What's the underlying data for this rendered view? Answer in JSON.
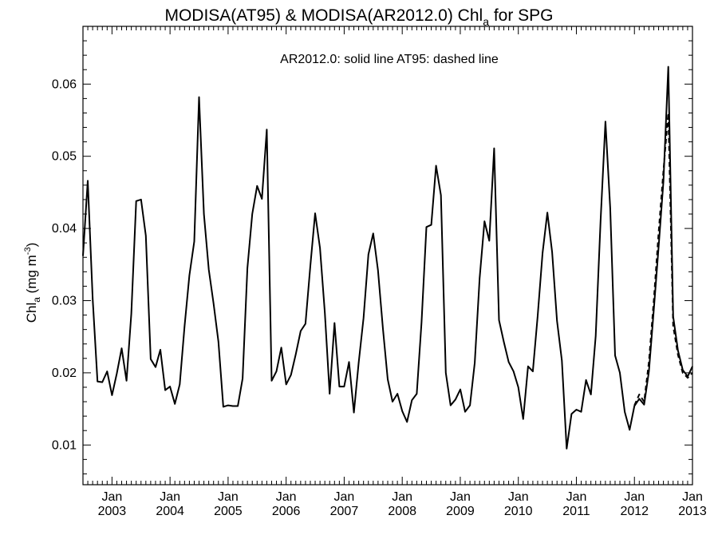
{
  "chart_data": {
    "type": "line",
    "title_main": "MODISA(AT95) & MODISA(AR2012.0)  Chl",
    "title_sub": "a",
    "title_end": " for SPG",
    "ylabel_main": "Chl",
    "ylabel_sub": "a",
    "ylabel_units": " (mg m",
    "ylabel_exp": "-3",
    "ylabel_close": ")",
    "annotation": "AR2012.0: solid line   AT95: dashed line",
    "xlim": [
      2002.5,
      2013.0
    ],
    "ylim": [
      0.0045,
      0.068
    ],
    "yticks": [
      0.01,
      0.02,
      0.03,
      0.04,
      0.05,
      0.06
    ],
    "ytick_labels": [
      "0.01",
      "0.02",
      "0.03",
      "0.04",
      "0.05",
      "0.06"
    ],
    "xticks": [
      2003,
      2004,
      2005,
      2006,
      2007,
      2008,
      2009,
      2010,
      2011,
      2012,
      2013
    ],
    "xtick_month_label": "Jan",
    "xtick_year_labels": [
      "2003",
      "2004",
      "2005",
      "2006",
      "2007",
      "2008",
      "2009",
      "2010",
      "2011",
      "2012",
      "2013"
    ],
    "series": [
      {
        "style": "solid",
        "x": [
          2002.5,
          2002.583,
          2002.667,
          2002.75,
          2002.833,
          2002.917,
          2003.0,
          2003.083,
          2003.167,
          2003.25,
          2003.333,
          2003.417,
          2003.5,
          2003.583,
          2003.667,
          2003.75,
          2003.833,
          2003.917,
          2004.0,
          2004.083,
          2004.167,
          2004.25,
          2004.333,
          2004.417,
          2004.5,
          2004.583,
          2004.667,
          2004.75,
          2004.833,
          2004.917,
          2005.0,
          2005.083,
          2005.167,
          2005.25,
          2005.333,
          2005.417,
          2005.5,
          2005.583,
          2005.667,
          2005.75,
          2005.833,
          2005.917,
          2006.0,
          2006.083,
          2006.167,
          2006.25,
          2006.333,
          2006.417,
          2006.5,
          2006.583,
          2006.667,
          2006.75,
          2006.833,
          2006.917,
          2007.0,
          2007.083,
          2007.167,
          2007.25,
          2007.333,
          2007.417,
          2007.5,
          2007.583,
          2007.667,
          2007.75,
          2007.833,
          2007.917,
          2008.0,
          2008.083,
          2008.167,
          2008.25,
          2008.333,
          2008.417,
          2008.5,
          2008.583,
          2008.667,
          2008.75,
          2008.833,
          2008.917,
          2009.0,
          2009.083,
          2009.167,
          2009.25,
          2009.333,
          2009.417,
          2009.5,
          2009.583,
          2009.667,
          2009.75,
          2009.833,
          2009.917,
          2010.0,
          2010.083,
          2010.167,
          2010.25,
          2010.333,
          2010.417,
          2010.5,
          2010.583,
          2010.667,
          2010.75,
          2010.833,
          2010.917,
          2011.0,
          2011.083,
          2011.167,
          2011.25,
          2011.333,
          2011.417,
          2011.5,
          2011.583,
          2011.667,
          2011.75,
          2011.833,
          2011.917,
          2012.0,
          2012.083,
          2012.167,
          2012.25,
          2012.333,
          2012.417,
          2012.5,
          2012.583,
          2012.667,
          2012.75,
          2012.833,
          2012.917,
          2013.0
        ],
        "y": [
          0.0362,
          0.0466,
          0.0302,
          0.0188,
          0.0187,
          0.0202,
          0.0169,
          0.0199,
          0.0234,
          0.0189,
          0.0282,
          0.0438,
          0.044,
          0.039,
          0.0219,
          0.0208,
          0.0232,
          0.0176,
          0.0181,
          0.0157,
          0.0184,
          0.0264,
          0.0335,
          0.0382,
          0.0582,
          0.042,
          0.0343,
          0.0296,
          0.0243,
          0.0153,
          0.0155,
          0.0154,
          0.0154,
          0.0192,
          0.0345,
          0.042,
          0.0459,
          0.0441,
          0.0537,
          0.0189,
          0.0202,
          0.0235,
          0.0184,
          0.0197,
          0.0226,
          0.0258,
          0.0268,
          0.0348,
          0.0421,
          0.0373,
          0.0283,
          0.0171,
          0.0269,
          0.0181,
          0.0181,
          0.0215,
          0.0145,
          0.0214,
          0.0276,
          0.0364,
          0.0393,
          0.0342,
          0.0261,
          0.0191,
          0.016,
          0.0171,
          0.0147,
          0.0132,
          0.0162,
          0.0171,
          0.027,
          0.0402,
          0.0405,
          0.0487,
          0.0446,
          0.02,
          0.0155,
          0.0163,
          0.0177,
          0.0146,
          0.0155,
          0.0214,
          0.0331,
          0.041,
          0.0383,
          0.0511,
          0.0273,
          0.0243,
          0.0215,
          0.0202,
          0.018,
          0.0136,
          0.0209,
          0.0202,
          0.0278,
          0.0366,
          0.0422,
          0.0367,
          0.0272,
          0.0217,
          0.0095,
          0.0143,
          0.0149,
          0.0146,
          0.019,
          0.017,
          0.0251,
          0.041,
          0.0548,
          0.0428,
          0.0224,
          0.02,
          0.0146,
          0.0121,
          0.0154,
          0.0164,
          0.0156,
          0.0202,
          0.0287,
          0.0375,
          0.0465,
          0.0624,
          0.0278,
          0.0231,
          0.0204,
          0.0195,
          0.0209
        ]
      },
      {
        "style": "dashed",
        "x": [
          2012.0,
          2012.083,
          2012.167,
          2012.25,
          2012.333,
          2012.417,
          2012.5,
          2012.583,
          2012.667,
          2012.75,
          2012.833,
          2012.917,
          2013.0
        ],
        "y": [
          0.0155,
          0.017,
          0.016,
          0.0215,
          0.03,
          0.0395,
          0.048,
          0.056,
          0.0265,
          0.0225,
          0.02,
          0.0193,
          0.02
        ]
      }
    ],
    "grid": false,
    "colors": {
      "line": "#000000",
      "background": "#ffffff"
    }
  }
}
